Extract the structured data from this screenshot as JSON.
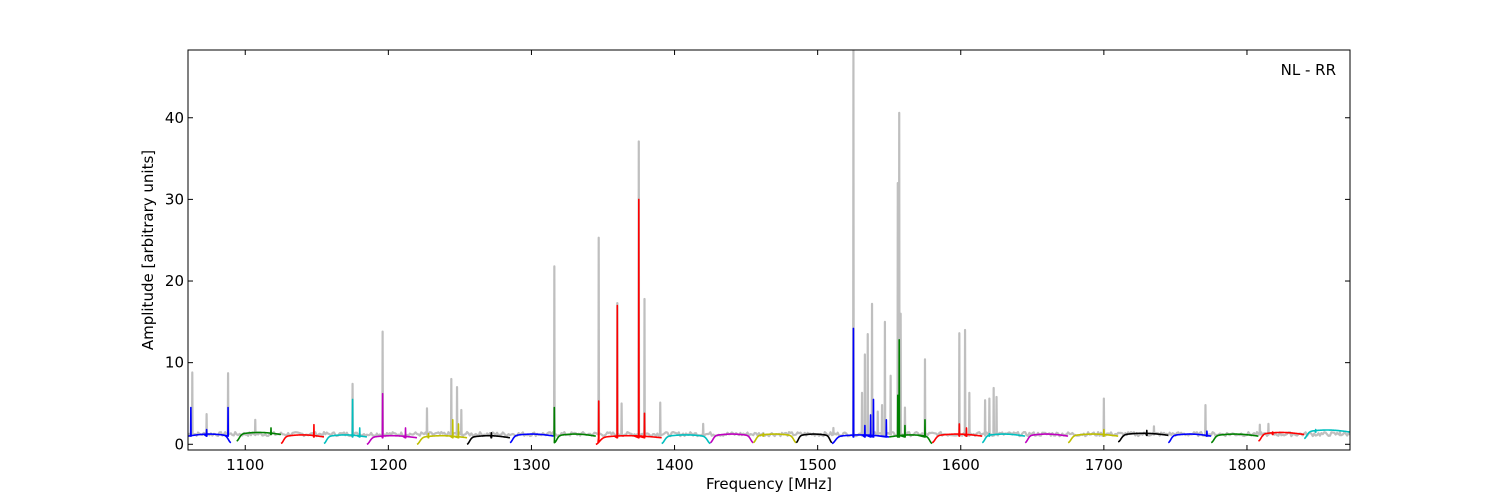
{
  "chart_data": {
    "type": "line",
    "title": "",
    "xlabel": "Frequency [MHz]",
    "ylabel": "Amplitude [arbitrary units]",
    "xlim": [
      1060,
      1872
    ],
    "ylim": [
      -0.7,
      48.3
    ],
    "grid": false,
    "annotation": "NL - RR",
    "xticks": [
      1100,
      1200,
      1300,
      1400,
      1500,
      1600,
      1700,
      1800
    ],
    "yticks": [
      0,
      10,
      20,
      30,
      40
    ],
    "colors": {
      "background_trace": "#bfbfbf",
      "blue": "#0000ff",
      "green": "#008000",
      "red": "#ff0000",
      "cyan": "#00bfbf",
      "magenta": "#bf00bf",
      "yellow": "#bfbf00",
      "black": "#000000"
    },
    "series": [
      {
        "color": "blue",
        "range": [
          1060,
          1090
        ],
        "baseline": 1.0,
        "dip": "right",
        "peaks": [
          [
            1062,
            4.5
          ],
          [
            1073,
            1.8
          ],
          [
            1088,
            4.5
          ]
        ]
      },
      {
        "color": "green",
        "range": [
          1094,
          1125
        ],
        "baseline": 1.2,
        "dip": "left",
        "peaks": [
          [
            1118,
            2.0
          ]
        ]
      },
      {
        "color": "red",
        "range": [
          1125,
          1155
        ],
        "baseline": 0.9,
        "dip": "left",
        "peaks": [
          [
            1148,
            2.4
          ]
        ]
      },
      {
        "color": "cyan",
        "range": [
          1155,
          1185
        ],
        "baseline": 0.9,
        "dip": "left",
        "peaks": [
          [
            1175,
            5.5
          ],
          [
            1180,
            2.0
          ]
        ]
      },
      {
        "color": "magenta",
        "range": [
          1185,
          1220
        ],
        "baseline": 0.8,
        "dip": "left",
        "peaks": [
          [
            1196,
            6.2
          ],
          [
            1212,
            2.0
          ]
        ]
      },
      {
        "color": "yellow",
        "range": [
          1220,
          1255
        ],
        "baseline": 0.8,
        "dip": "left",
        "peaks": [
          [
            1228,
            1.3
          ],
          [
            1245,
            3.0
          ],
          [
            1249,
            2.5
          ]
        ]
      },
      {
        "color": "black",
        "range": [
          1255,
          1285
        ],
        "baseline": 0.8,
        "dip": "left",
        "peaks": [
          [
            1272,
            1.4
          ]
        ]
      },
      {
        "color": "blue",
        "range": [
          1285,
          1316
        ],
        "baseline": 1.0,
        "dip": "left",
        "peaks": []
      },
      {
        "color": "green",
        "range": [
          1316,
          1345
        ],
        "baseline": 1.0,
        "dip": "left",
        "peaks": [
          [
            1316,
            4.5
          ]
        ]
      },
      {
        "color": "red",
        "range": [
          1345,
          1391
        ],
        "baseline": 0.8,
        "dip": "left",
        "peaks": [
          [
            1347,
            5.3
          ],
          [
            1360,
            17.0
          ],
          [
            1375,
            30.0
          ],
          [
            1379,
            3.8
          ]
        ]
      },
      {
        "color": "cyan",
        "range": [
          1391,
          1425
        ],
        "baseline": 0.9,
        "dip": "both",
        "peaks": []
      },
      {
        "color": "magenta",
        "range": [
          1425,
          1455
        ],
        "baseline": 1.0,
        "dip": "both",
        "peaks": []
      },
      {
        "color": "yellow",
        "range": [
          1455,
          1485
        ],
        "baseline": 1.0,
        "dip": "both",
        "peaks": [
          [
            1462,
            1.3
          ]
        ]
      },
      {
        "color": "black",
        "range": [
          1485,
          1510
        ],
        "baseline": 1.0,
        "dip": "both",
        "peaks": []
      },
      {
        "color": "blue",
        "range": [
          1510,
          1550
        ],
        "baseline": 0.9,
        "dip": "left",
        "peaks": [
          [
            1525,
            14.2
          ],
          [
            1533,
            2.3
          ],
          [
            1537,
            3.6
          ],
          [
            1539,
            5.5
          ],
          [
            1548,
            3.0
          ]
        ]
      },
      {
        "color": "green",
        "range": [
          1550,
          1580
        ],
        "baseline": 0.9,
        "dip": "right",
        "peaks": [
          [
            1556,
            6.0
          ],
          [
            1557,
            12.8
          ],
          [
            1561,
            2.3
          ],
          [
            1575,
            3.0
          ]
        ]
      },
      {
        "color": "red",
        "range": [
          1580,
          1615
        ],
        "baseline": 1.0,
        "dip": "left",
        "peaks": [
          [
            1599,
            2.5
          ],
          [
            1604,
            2.0
          ]
        ]
      },
      {
        "color": "cyan",
        "range": [
          1615,
          1645
        ],
        "baseline": 1.0,
        "dip": "left",
        "peaks": [
          [
            1620,
            1.3
          ]
        ]
      },
      {
        "color": "magenta",
        "range": [
          1645,
          1675
        ],
        "baseline": 1.0,
        "dip": "left",
        "peaks": []
      },
      {
        "color": "yellow",
        "range": [
          1675,
          1710
        ],
        "baseline": 1.0,
        "dip": "left",
        "peaks": [
          [
            1700,
            1.8
          ]
        ]
      },
      {
        "color": "black",
        "range": [
          1710,
          1745
        ],
        "baseline": 1.1,
        "dip": "left",
        "peaks": [
          [
            1730,
            1.7
          ]
        ]
      },
      {
        "color": "blue",
        "range": [
          1745,
          1775
        ],
        "baseline": 1.0,
        "dip": "left",
        "peaks": [
          [
            1772,
            1.6
          ]
        ]
      },
      {
        "color": "green",
        "range": [
          1775,
          1808
        ],
        "baseline": 1.0,
        "dip": "left",
        "peaks": []
      },
      {
        "color": "red",
        "range": [
          1808,
          1840
        ],
        "baseline": 1.2,
        "dip": "left",
        "peaks": [
          [
            1818,
            1.5
          ]
        ]
      },
      {
        "color": "cyan",
        "range": [
          1840,
          1872
        ],
        "baseline": 1.5,
        "dip": "left",
        "peaks": [
          [
            1848,
            1.8
          ]
        ]
      }
    ],
    "background_peaks": [
      [
        1063,
        8.8
      ],
      [
        1073,
        3.7
      ],
      [
        1088,
        8.7
      ],
      [
        1107,
        3.0
      ],
      [
        1175,
        7.4
      ],
      [
        1196,
        13.8
      ],
      [
        1227,
        4.4
      ],
      [
        1244,
        8.0
      ],
      [
        1248,
        7.0
      ],
      [
        1251,
        4.2
      ],
      [
        1316,
        21.8
      ],
      [
        1347,
        25.3
      ],
      [
        1360,
        17.3
      ],
      [
        1363,
        5.0
      ],
      [
        1375,
        37.1
      ],
      [
        1379,
        17.8
      ],
      [
        1390,
        5.1
      ],
      [
        1420,
        2.5
      ],
      [
        1511,
        2.0
      ],
      [
        1525,
        48.3
      ],
      [
        1531,
        6.3
      ],
      [
        1533,
        11.0
      ],
      [
        1535,
        13.5
      ],
      [
        1538,
        17.2
      ],
      [
        1542,
        4.0
      ],
      [
        1545,
        4.8
      ],
      [
        1547,
        15.0
      ],
      [
        1551,
        8.4
      ],
      [
        1556,
        32.0
      ],
      [
        1557,
        40.6
      ],
      [
        1558,
        16.0
      ],
      [
        1561,
        4.5
      ],
      [
        1575,
        10.4
      ],
      [
        1599,
        13.6
      ],
      [
        1603,
        14.0
      ],
      [
        1606,
        6.3
      ],
      [
        1617,
        5.4
      ],
      [
        1620,
        5.6
      ],
      [
        1623,
        6.9
      ],
      [
        1625,
        5.8
      ],
      [
        1700,
        5.6
      ],
      [
        1735,
        2.2
      ],
      [
        1771,
        4.8
      ],
      [
        1809,
        2.4
      ],
      [
        1815,
        2.5
      ],
      [
        1865,
        1.5
      ]
    ]
  }
}
